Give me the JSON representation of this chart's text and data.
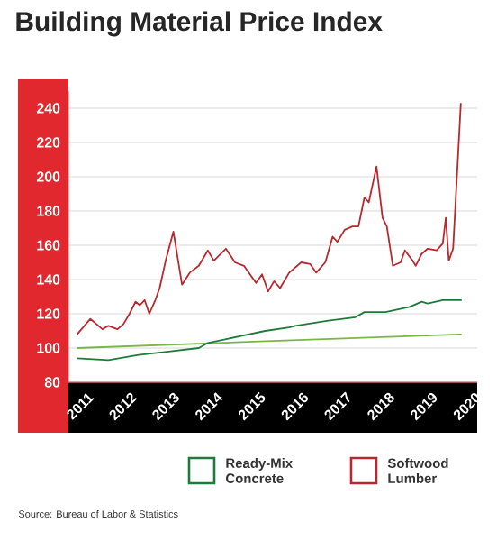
{
  "chart_data": {
    "type": "line",
    "title": "Building Material Price Index",
    "xlim": [
      2010.62,
      2020.12
    ],
    "xticks": [
      2011,
      2012,
      2013,
      2014,
      2015,
      2016,
      2017,
      2018,
      2019,
      2020
    ],
    "ylim": [
      80,
      250
    ],
    "yticks": [
      80,
      100,
      120,
      140,
      160,
      180,
      200,
      220,
      240
    ],
    "grid": "y",
    "legend": "bottom",
    "marker": "none",
    "line_style": "solid",
    "series": [
      {
        "color": "#7ab648",
        "x": [
          2010.82,
          2015.21,
          2019.76
        ],
        "values": [
          100,
          104,
          108
        ]
      },
      {
        "name": "Ready-Mix Concrete",
        "color": "#1e7b3a",
        "x": [
          2010.82,
          2011.55,
          2012.25,
          2012.95,
          2013.65,
          2013.86,
          2014.63,
          2015.19,
          2015.75,
          2015.89,
          2016.66,
          2017.29,
          2017.5,
          2017.99,
          2018.55,
          2018.83,
          2018.97,
          2019.32,
          2019.76
        ],
        "values": [
          94,
          93,
          96,
          98,
          100,
          103,
          107,
          110,
          112,
          113,
          116,
          118,
          121,
          121,
          124,
          127,
          126,
          128,
          128
        ]
      },
      {
        "name": "Softwood Lumber",
        "color": "#b8282e",
        "x": [
          2010.82,
          2011.13,
          2011.27,
          2011.41,
          2011.55,
          2011.76,
          2011.9,
          2012.04,
          2012.18,
          2012.28,
          2012.39,
          2012.5,
          2012.64,
          2012.74,
          2012.88,
          2013.06,
          2013.26,
          2013.44,
          2013.65,
          2013.86,
          2014.0,
          2014.28,
          2014.49,
          2014.7,
          2014.98,
          2015.12,
          2015.26,
          2015.4,
          2015.54,
          2015.75,
          2016.03,
          2016.24,
          2016.38,
          2016.59,
          2016.76,
          2016.87,
          2017.04,
          2017.22,
          2017.36,
          2017.5,
          2017.6,
          2017.78,
          2017.92,
          2018.02,
          2018.16,
          2018.34,
          2018.44,
          2018.62,
          2018.69,
          2018.83,
          2018.97,
          2019.18,
          2019.32,
          2019.39,
          2019.46,
          2019.56,
          2019.74
        ],
        "values": [
          108,
          117,
          114,
          111,
          113,
          111,
          114,
          120,
          127,
          125,
          128,
          120,
          128,
          135,
          151,
          168,
          137,
          144,
          148,
          157,
          151,
          158,
          150,
          148,
          138,
          143,
          133,
          139,
          135,
          144,
          150,
          149,
          144,
          150,
          165,
          162,
          169,
          171,
          171,
          188,
          185,
          206,
          176,
          171,
          148,
          150,
          157,
          151,
          148,
          155,
          158,
          157,
          161,
          176,
          151,
          158,
          243
        ]
      }
    ],
    "annotations": [
      "Source: Bureau of Labor & Statistics"
    ]
  }
}
